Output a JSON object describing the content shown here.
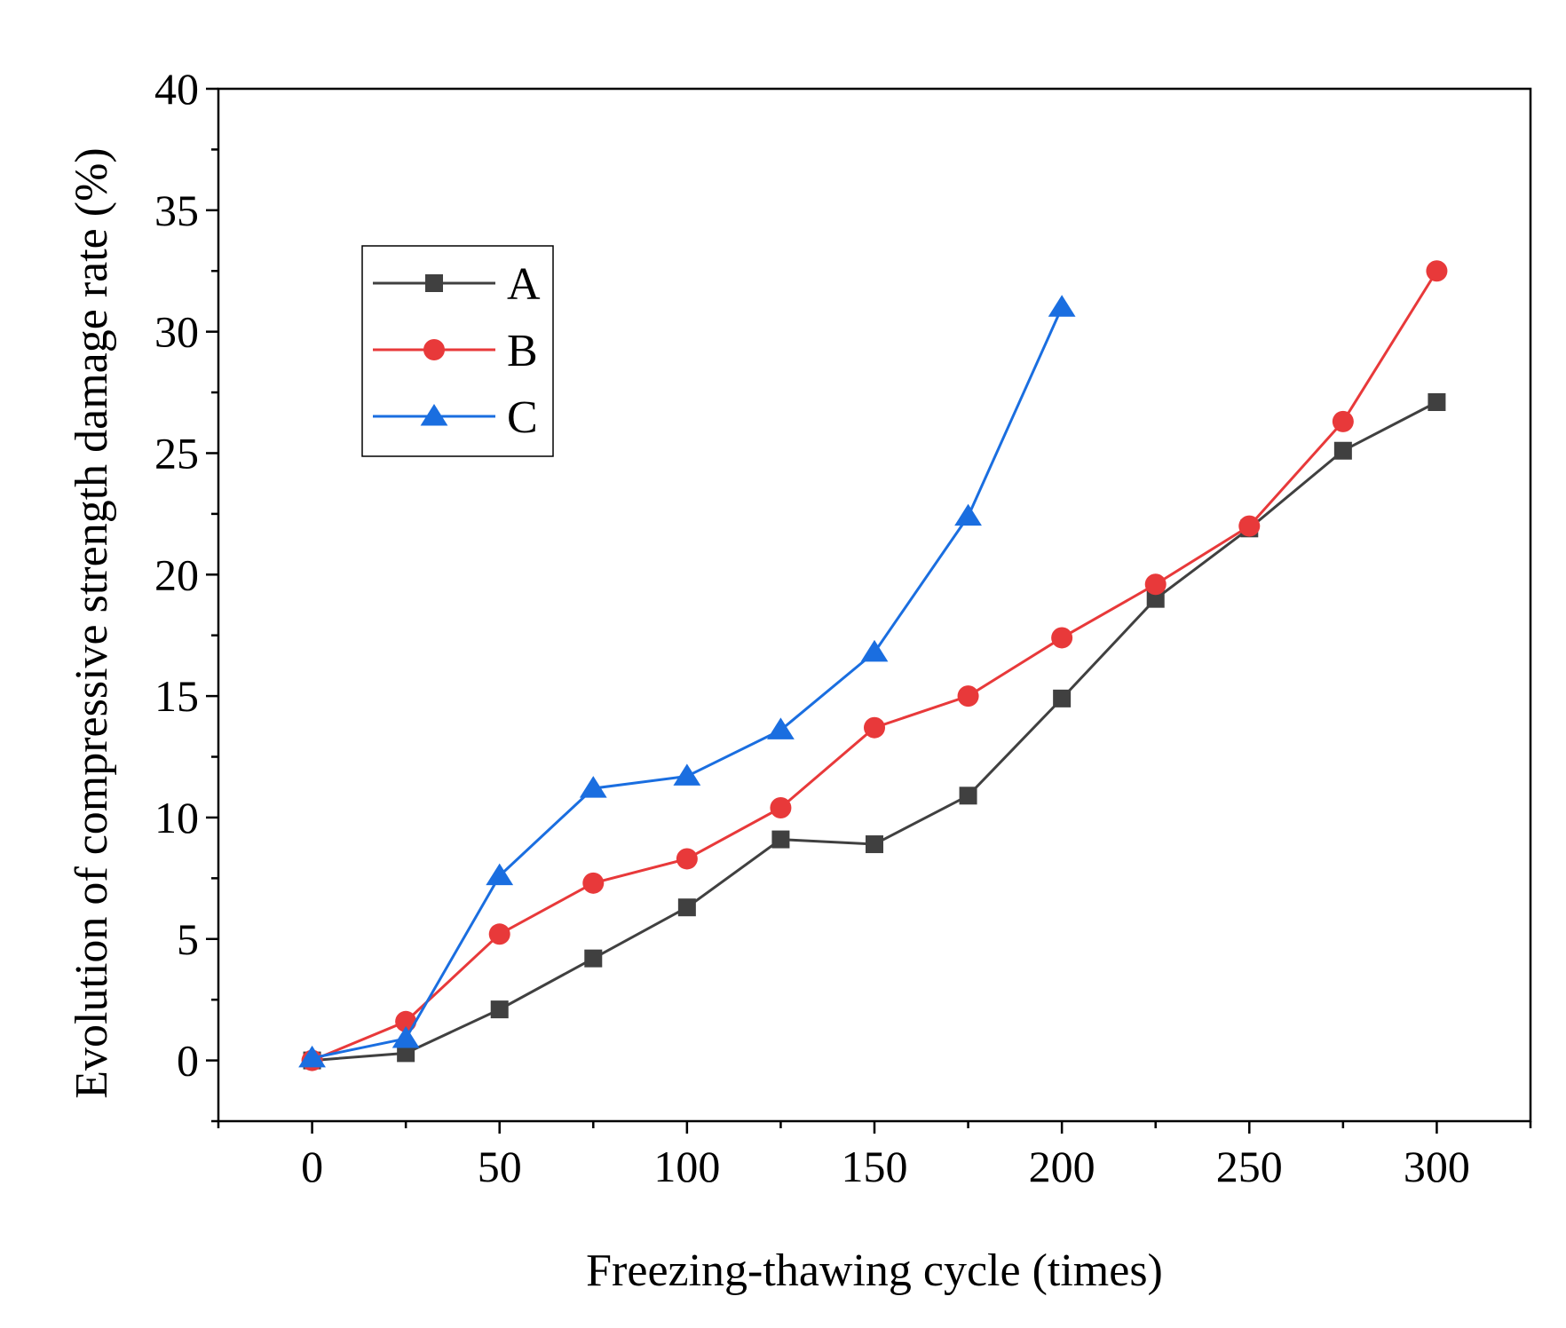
{
  "chart_data": {
    "type": "line",
    "xlabel": "Freezing-thawing cycle (times)",
    "ylabel": "Evolution of compressive strength damage rate (%)",
    "xlim": [
      -25,
      325
    ],
    "ylim": [
      -2.5,
      40
    ],
    "xticks": [
      0,
      50,
      100,
      150,
      200,
      250,
      300
    ],
    "xtick_labels": [
      "0",
      "50",
      "100",
      "150",
      "200",
      "250",
      "300"
    ],
    "yticks": [
      0,
      5,
      10,
      15,
      20,
      25,
      30,
      35,
      40
    ],
    "ytick_labels": [
      "0",
      "5",
      "10",
      "15",
      "20",
      "25",
      "30",
      "35",
      "40"
    ],
    "legend_position": "top-left",
    "series": [
      {
        "name": "A",
        "marker": "square",
        "color": "#404040",
        "x": [
          0,
          25,
          50,
          75,
          100,
          125,
          150,
          175,
          200,
          225,
          250,
          275,
          300
        ],
        "y": [
          0,
          0.3,
          2.1,
          4.2,
          6.3,
          9.1,
          8.9,
          10.9,
          14.9,
          19.0,
          21.9,
          25.1,
          27.1
        ]
      },
      {
        "name": "B",
        "marker": "circle",
        "color": "#e8393a",
        "x": [
          0,
          25,
          50,
          75,
          100,
          125,
          150,
          175,
          200,
          225,
          250,
          275,
          300
        ],
        "y": [
          0,
          1.6,
          5.2,
          7.3,
          8.3,
          10.4,
          13.7,
          15.0,
          17.4,
          19.6,
          22.0,
          26.3,
          32.5
        ]
      },
      {
        "name": "C",
        "marker": "triangle",
        "color": "#1a6ee0",
        "x": [
          0,
          25,
          50,
          75,
          100,
          125,
          150,
          175,
          200
        ],
        "y": [
          0.1,
          0.9,
          7.6,
          11.2,
          11.7,
          13.6,
          16.8,
          22.4,
          31.0
        ]
      }
    ]
  }
}
